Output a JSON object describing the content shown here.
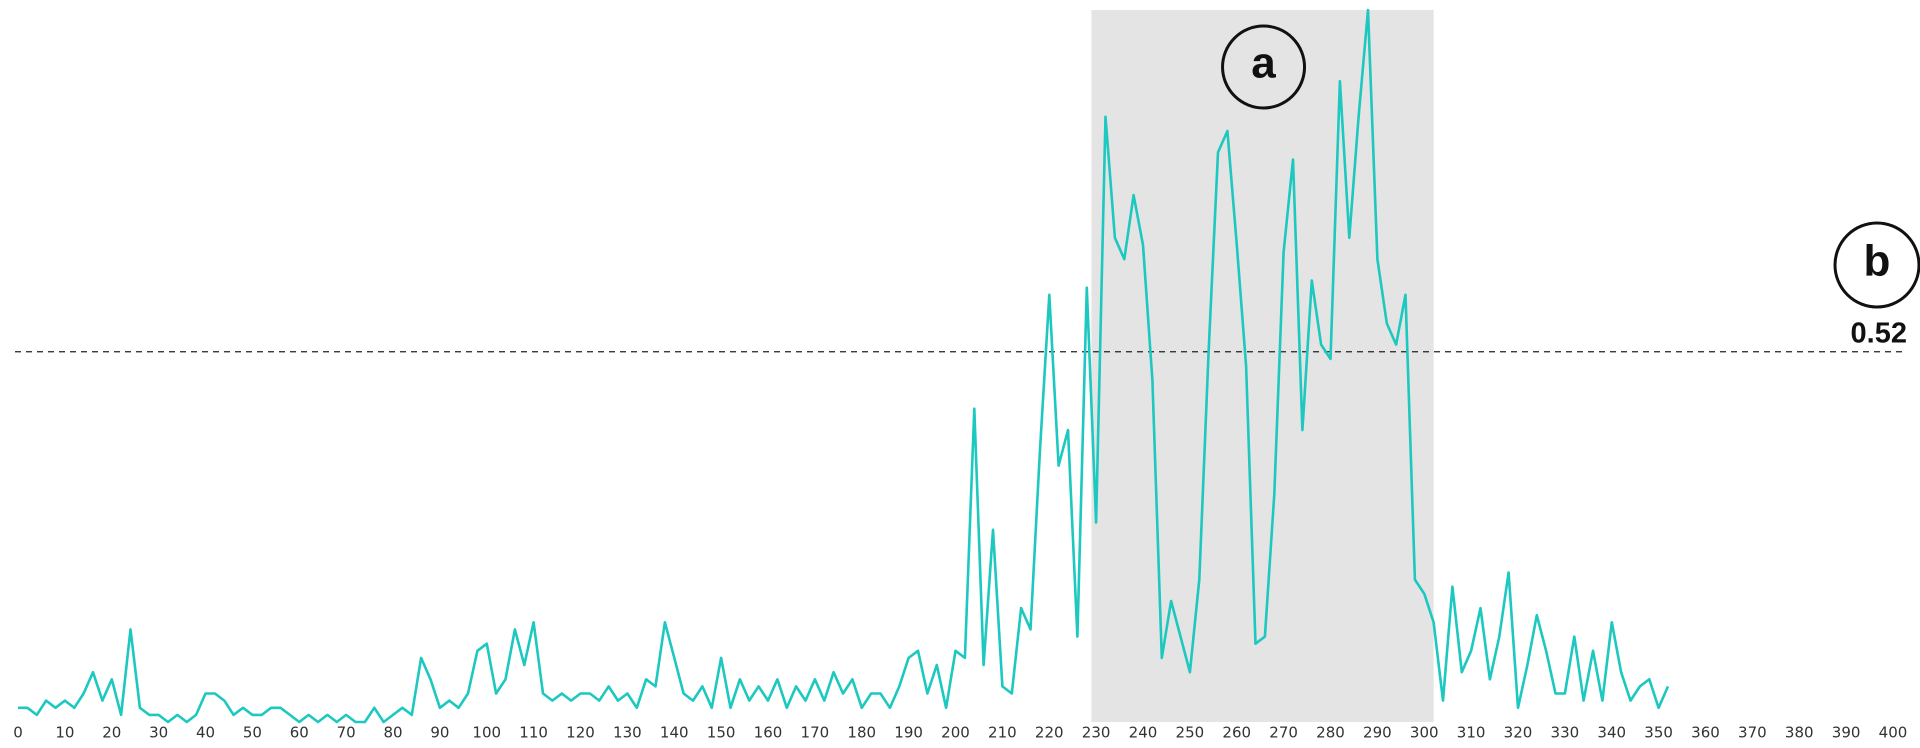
{
  "chart_data": {
    "type": "line",
    "x": [
      0,
      2,
      4,
      6,
      8,
      10,
      12,
      14,
      16,
      18,
      20,
      22,
      24,
      26,
      28,
      30,
      32,
      34,
      36,
      38,
      40,
      42,
      44,
      46,
      48,
      50,
      52,
      54,
      56,
      58,
      60,
      62,
      64,
      66,
      68,
      70,
      72,
      74,
      76,
      78,
      80,
      82,
      84,
      86,
      88,
      90,
      92,
      94,
      96,
      98,
      100,
      102,
      104,
      106,
      108,
      110,
      112,
      114,
      116,
      118,
      120,
      122,
      124,
      126,
      128,
      130,
      132,
      134,
      136,
      138,
      140,
      142,
      144,
      146,
      148,
      150,
      152,
      154,
      156,
      158,
      160,
      162,
      164,
      166,
      168,
      170,
      172,
      174,
      176,
      178,
      180,
      182,
      184,
      186,
      188,
      190,
      192,
      194,
      196,
      198,
      200,
      202,
      204,
      206,
      208,
      210,
      212,
      214,
      216,
      218,
      220,
      222,
      224,
      226,
      228,
      230,
      232,
      234,
      236,
      238,
      240,
      242,
      244,
      246,
      248,
      250,
      252,
      254,
      256,
      258,
      260,
      262,
      264,
      266,
      268,
      270,
      272,
      274,
      276,
      278,
      280,
      282,
      284,
      286,
      288,
      290,
      292,
      294,
      296,
      298,
      300,
      302,
      304,
      306,
      308,
      310,
      312,
      314,
      316,
      318,
      320,
      322,
      324,
      326,
      328,
      330,
      332,
      334,
      336,
      338,
      340,
      342,
      344,
      346,
      348,
      350,
      352
    ],
    "series": [
      {
        "color": "#1cc8bf",
        "values": [
          0.02,
          0.02,
          0.01,
          0.03,
          0.02,
          0.03,
          0.02,
          0.04,
          0.07,
          0.03,
          0.06,
          0.01,
          0.13,
          0.02,
          0.01,
          0.01,
          0.0,
          0.01,
          0.0,
          0.01,
          0.04,
          0.04,
          0.03,
          0.01,
          0.02,
          0.01,
          0.01,
          0.02,
          0.02,
          0.01,
          0.0,
          0.01,
          0.0,
          0.01,
          0.0,
          0.01,
          0.0,
          0.0,
          0.02,
          0.0,
          0.01,
          0.02,
          0.01,
          0.09,
          0.06,
          0.02,
          0.03,
          0.02,
          0.04,
          0.1,
          0.11,
          0.04,
          0.06,
          0.13,
          0.08,
          0.14,
          0.04,
          0.03,
          0.04,
          0.03,
          0.04,
          0.04,
          0.03,
          0.05,
          0.03,
          0.04,
          0.02,
          0.06,
          0.05,
          0.14,
          0.09,
          0.04,
          0.03,
          0.05,
          0.02,
          0.09,
          0.02,
          0.06,
          0.03,
          0.05,
          0.03,
          0.06,
          0.02,
          0.05,
          0.03,
          0.06,
          0.03,
          0.07,
          0.04,
          0.06,
          0.02,
          0.04,
          0.04,
          0.02,
          0.05,
          0.09,
          0.1,
          0.04,
          0.08,
          0.02,
          0.1,
          0.09,
          0.44,
          0.08,
          0.27,
          0.05,
          0.04,
          0.16,
          0.13,
          0.38,
          0.6,
          0.36,
          0.41,
          0.12,
          0.61,
          0.28,
          0.85,
          0.68,
          0.65,
          0.74,
          0.67,
          0.48,
          0.09,
          0.17,
          0.12,
          0.07,
          0.2,
          0.52,
          0.8,
          0.83,
          0.67,
          0.5,
          0.11,
          0.12,
          0.32,
          0.66,
          0.79,
          0.41,
          0.62,
          0.53,
          0.51,
          0.9,
          0.68,
          0.85,
          1.0,
          0.65,
          0.56,
          0.53,
          0.6,
          0.2,
          0.18,
          0.14,
          0.03,
          0.19,
          0.07,
          0.1,
          0.16,
          0.06,
          0.12,
          0.21,
          0.02,
          0.08,
          0.15,
          0.1,
          0.04,
          0.04,
          0.12,
          0.03,
          0.1,
          0.03,
          0.14,
          0.07,
          0.03,
          0.05,
          0.06,
          0.02,
          0.05
        ]
      }
    ],
    "xlim": [
      0,
      400
    ],
    "xticks": [
      0,
      10,
      20,
      30,
      40,
      50,
      60,
      70,
      80,
      90,
      100,
      110,
      120,
      130,
      140,
      150,
      160,
      170,
      180,
      190,
      200,
      210,
      220,
      230,
      240,
      250,
      260,
      270,
      280,
      290,
      300,
      310,
      320,
      330,
      340,
      350,
      360,
      370,
      380,
      390,
      400
    ],
    "ylim": [
      0,
      1
    ],
    "highlight": {
      "label": "a",
      "range": [
        229,
        302
      ]
    },
    "threshold": {
      "label": "b",
      "value": 0.52
    }
  }
}
